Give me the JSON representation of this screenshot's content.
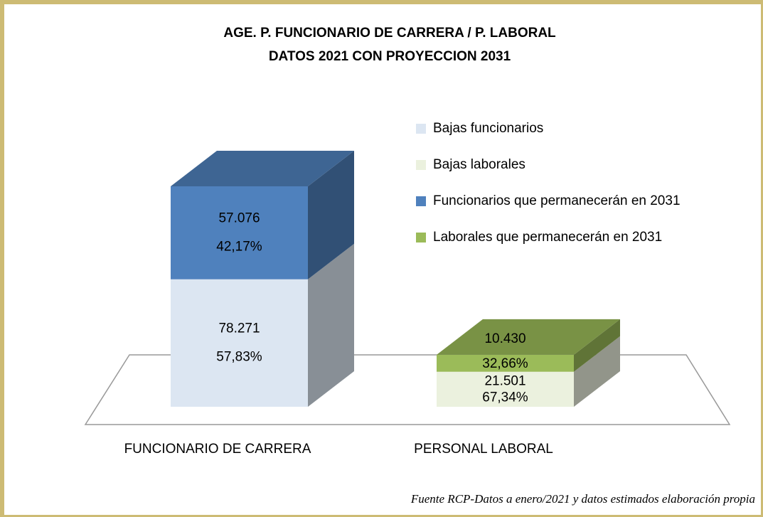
{
  "chart_data": {
    "type": "bar3d_stacked",
    "title": "AGE. P. FUNCIONARIO DE CARRERA / P. LABORAL",
    "subtitle": "DATOS 2021 CON PROYECCION 2031",
    "categories": [
      "FUNCIONARIO DE CARRERA",
      "PERSONAL LABORAL"
    ],
    "series": [
      {
        "name": "Bajas funcionarios",
        "color": "#dce6f2",
        "values": [
          78271,
          null
        ],
        "value_labels": [
          "78.271",
          null
        ],
        "percentages": [
          57.83,
          null
        ],
        "percentage_labels": [
          "57,83%",
          null
        ]
      },
      {
        "name": "Bajas laborales",
        "color": "#ebf1de",
        "values": [
          null,
          21501
        ],
        "value_labels": [
          null,
          "21.501"
        ],
        "percentages": [
          null,
          67.34
        ],
        "percentage_labels": [
          null,
          "67,34%"
        ]
      },
      {
        "name": "Funcionarios que permanecerán en 2031",
        "color": "#4f81bd",
        "values": [
          57076,
          null
        ],
        "value_labels": [
          "57.076",
          null
        ],
        "percentages": [
          42.17,
          null
        ],
        "percentage_labels": [
          "42,17%",
          null
        ]
      },
      {
        "name": "Laborales que permanecerán en 2031",
        "color": "#9bbb59",
        "values": [
          null,
          10430
        ],
        "value_labels": [
          null,
          "10.430"
        ],
        "percentages": [
          null,
          32.66
        ],
        "percentage_labels": [
          null,
          "32,66%"
        ]
      }
    ],
    "legend": "right",
    "source": "Fuente RCP-Datos a enero/2021 y datos estimados  elaboración propia"
  }
}
